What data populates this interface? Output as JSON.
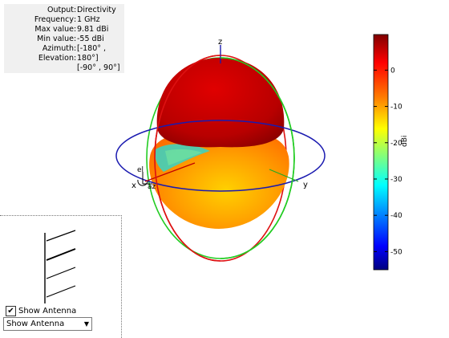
{
  "info": {
    "rows": [
      {
        "label": "Output",
        "value": "Directivity"
      },
      {
        "label": "Frequency",
        "value": "1 GHz"
      },
      {
        "label": "Max value",
        "value": "9.81 dBi"
      },
      {
        "label": "Min value",
        "value": "-55 dBi"
      },
      {
        "label": "Azimuth",
        "value": "[-180° ,"
      },
      {
        "label": "Elevation",
        "value": "180°]"
      }
    ],
    "extra": "[-90° , 90°]"
  },
  "axes": {
    "z": "z",
    "x": "x",
    "y": "y",
    "el": "el",
    "az": "az"
  },
  "colorbar": {
    "ticks": [
      "0",
      "-10",
      "-20",
      "-30",
      "-40",
      "-50"
    ],
    "unit": "dBi",
    "max": 9.81,
    "min": -55,
    "colors": [
      "#7f0000",
      "#ff0000",
      "#ff7f00",
      "#ffff00",
      "#7fff7f",
      "#00ffff",
      "#007fff",
      "#0000ff",
      "#00007f"
    ]
  },
  "antenna": {
    "checkbox_label": "Show Antenna",
    "checked": "✔",
    "select_value": "Show Antenna"
  }
}
